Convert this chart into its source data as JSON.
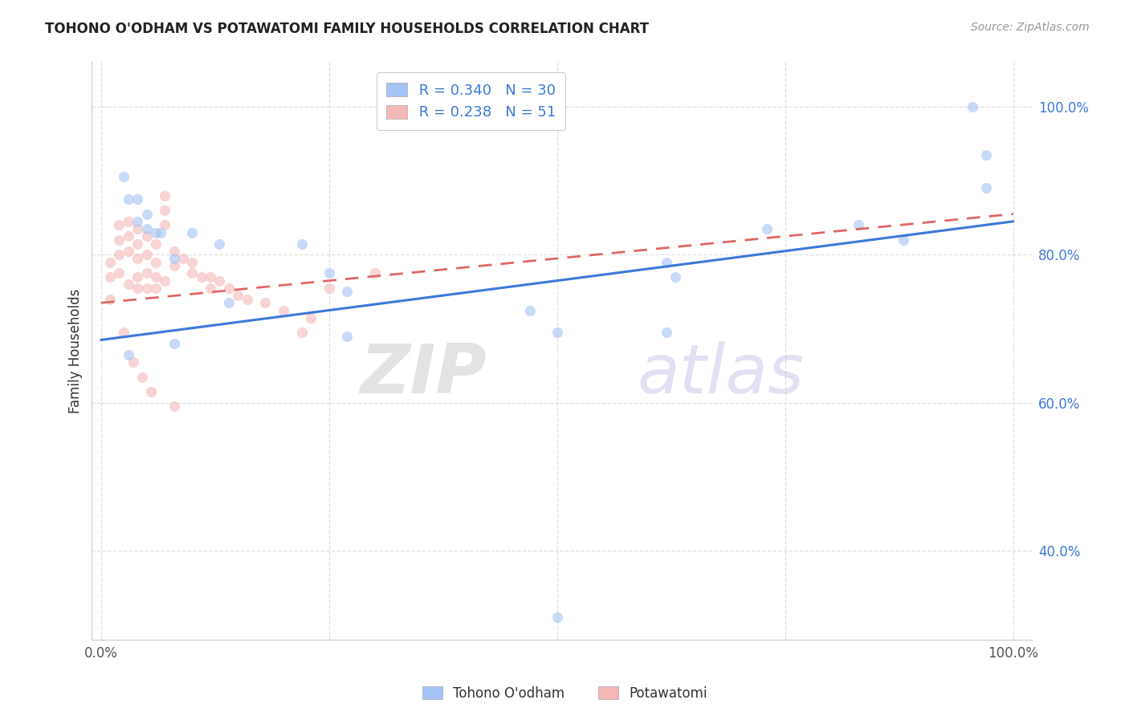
{
  "title": "TOHONO O'ODHAM VS POTAWATOMI FAMILY HOUSEHOLDS CORRELATION CHART",
  "source": "Source: ZipAtlas.com",
  "ylabel": "Family Households",
  "watermark_zip": "ZIP",
  "watermark_atlas": "atlas",
  "xlim": [
    -0.01,
    1.02
  ],
  "ylim": [
    0.28,
    1.06
  ],
  "x_ticks": [
    0.0,
    0.25,
    0.5,
    0.75,
    1.0
  ],
  "x_tick_labels": [
    "0.0%",
    "",
    "",
    "",
    "100.0%"
  ],
  "y_ticks_right": [
    0.4,
    0.6,
    0.8,
    1.0
  ],
  "y_tick_labels_right": [
    "40.0%",
    "60.0%",
    "80.0%",
    "100.0%"
  ],
  "blue_color": "#a4c2f4",
  "pink_color": "#f4b8b8",
  "blue_line_color": "#3c78d8",
  "pink_line_color": "#e06666",
  "marker_size": 90,
  "marker_alpha": 0.6,
  "tohono_x": [
    0.025,
    0.03,
    0.04,
    0.04,
    0.05,
    0.05,
    0.06,
    0.065,
    0.08,
    0.1,
    0.13,
    0.14,
    0.22,
    0.25,
    0.27,
    0.47,
    0.5,
    0.62,
    0.63,
    0.73,
    0.83,
    0.88,
    0.955,
    0.97,
    0.97,
    0.5,
    0.62,
    0.27,
    0.08,
    0.03
  ],
  "tohono_y": [
    0.905,
    0.875,
    0.875,
    0.845,
    0.855,
    0.835,
    0.83,
    0.83,
    0.795,
    0.83,
    0.815,
    0.735,
    0.815,
    0.775,
    0.75,
    0.725,
    0.695,
    0.79,
    0.77,
    0.835,
    0.84,
    0.82,
    1.0,
    0.935,
    0.89,
    0.31,
    0.695,
    0.69,
    0.68,
    0.665
  ],
  "potawatomi_x": [
    0.01,
    0.01,
    0.01,
    0.02,
    0.02,
    0.02,
    0.02,
    0.03,
    0.03,
    0.03,
    0.03,
    0.04,
    0.04,
    0.04,
    0.04,
    0.04,
    0.05,
    0.05,
    0.05,
    0.05,
    0.06,
    0.06,
    0.06,
    0.06,
    0.07,
    0.07,
    0.07,
    0.07,
    0.08,
    0.08,
    0.09,
    0.1,
    0.1,
    0.11,
    0.12,
    0.12,
    0.13,
    0.14,
    0.15,
    0.16,
    0.18,
    0.2,
    0.22,
    0.23,
    0.25,
    0.3,
    0.025,
    0.035,
    0.045,
    0.055,
    0.08
  ],
  "potawatomi_y": [
    0.79,
    0.77,
    0.74,
    0.84,
    0.82,
    0.8,
    0.775,
    0.845,
    0.825,
    0.805,
    0.76,
    0.835,
    0.815,
    0.795,
    0.77,
    0.755,
    0.825,
    0.8,
    0.775,
    0.755,
    0.815,
    0.79,
    0.77,
    0.755,
    0.88,
    0.86,
    0.84,
    0.765,
    0.805,
    0.785,
    0.795,
    0.79,
    0.775,
    0.77,
    0.77,
    0.755,
    0.765,
    0.755,
    0.745,
    0.74,
    0.735,
    0.725,
    0.695,
    0.715,
    0.755,
    0.775,
    0.695,
    0.655,
    0.635,
    0.615,
    0.595
  ],
  "background_color": "#ffffff",
  "grid_color": "#e0e0e0",
  "label1": "Tohono O'odham",
  "label2": "Potawatomi"
}
